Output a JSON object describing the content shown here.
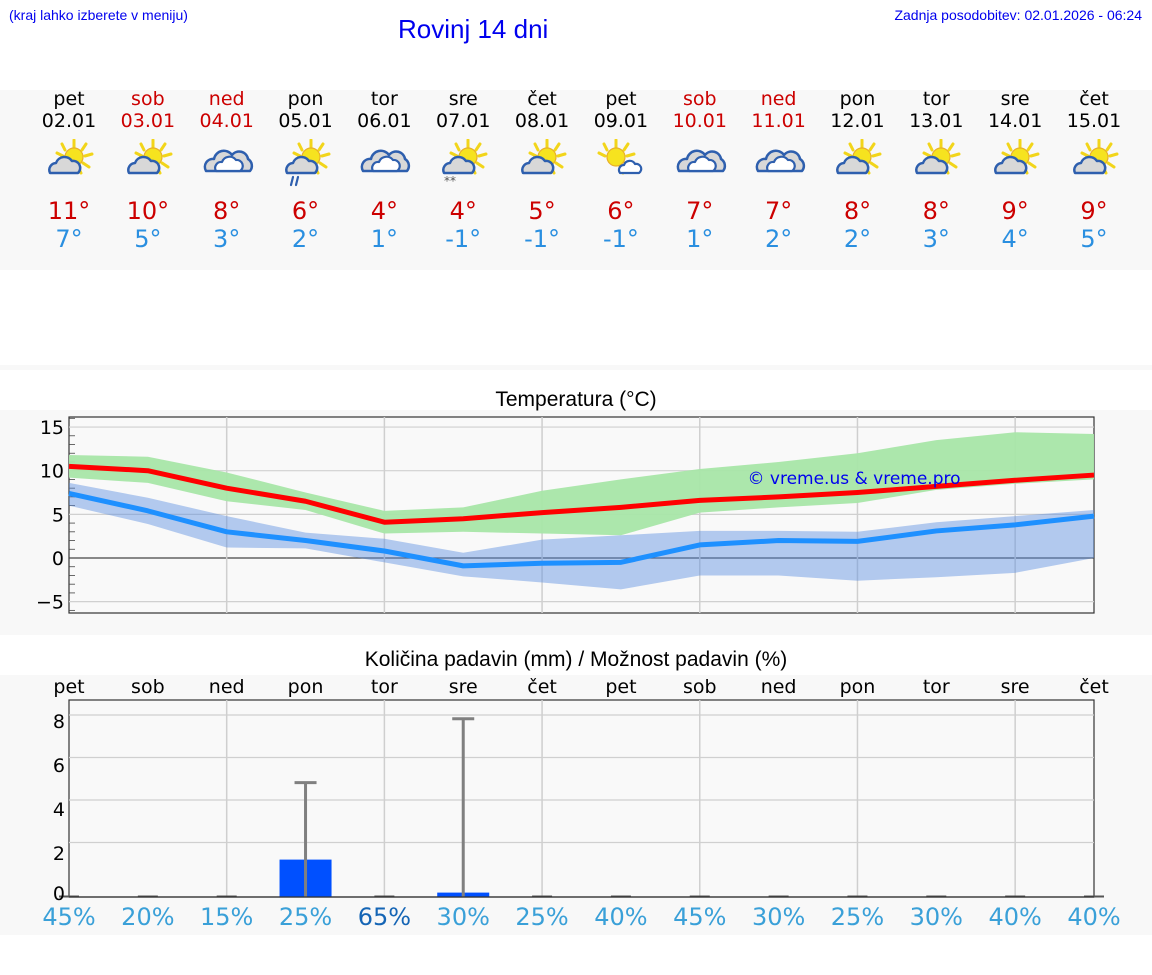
{
  "header": {
    "location_hint": "(kraj lahko izberete v meniju)",
    "title": "Rovinj 14 dni",
    "last_update": "Zadnja posodobitev: 02.01.2026 - 06:24"
  },
  "days": [
    {
      "name": "pet",
      "date": "02.01",
      "weekend": false,
      "icon": "partly-cloudy-icon",
      "tmax": "11°",
      "tmin": "7°"
    },
    {
      "name": "sob",
      "date": "03.01",
      "weekend": true,
      "icon": "partly-cloudy-icon",
      "tmax": "10°",
      "tmin": "5°"
    },
    {
      "name": "ned",
      "date": "04.01",
      "weekend": true,
      "icon": "cloudy-icon",
      "tmax": "8°",
      "tmin": "3°"
    },
    {
      "name": "pon",
      "date": "05.01",
      "weekend": false,
      "icon": "partly-cloudy-rain-icon",
      "tmax": "6°",
      "tmin": "2°"
    },
    {
      "name": "tor",
      "date": "06.01",
      "weekend": false,
      "icon": "cloudy-icon",
      "tmax": "4°",
      "tmin": "1°"
    },
    {
      "name": "sre",
      "date": "07.01",
      "weekend": false,
      "icon": "partly-cloudy-snow-icon",
      "tmax": "4°",
      "tmin": "-1°"
    },
    {
      "name": "čet",
      "date": "08.01",
      "weekend": false,
      "icon": "partly-cloudy-icon",
      "tmax": "5°",
      "tmin": "-1°"
    },
    {
      "name": "pet",
      "date": "09.01",
      "weekend": false,
      "icon": "mostly-sunny-icon",
      "tmax": "6°",
      "tmin": "-1°"
    },
    {
      "name": "sob",
      "date": "10.01",
      "weekend": true,
      "icon": "cloudy-icon",
      "tmax": "7°",
      "tmin": "1°"
    },
    {
      "name": "ned",
      "date": "11.01",
      "weekend": true,
      "icon": "cloudy-icon",
      "tmax": "7°",
      "tmin": "2°"
    },
    {
      "name": "pon",
      "date": "12.01",
      "weekend": false,
      "icon": "partly-cloudy-icon",
      "tmax": "8°",
      "tmin": "2°"
    },
    {
      "name": "tor",
      "date": "13.01",
      "weekend": false,
      "icon": "partly-cloudy-icon",
      "tmax": "8°",
      "tmin": "3°"
    },
    {
      "name": "sre",
      "date": "14.01",
      "weekend": false,
      "icon": "partly-cloudy-icon",
      "tmax": "9°",
      "tmin": "4°"
    },
    {
      "name": "čet",
      "date": "15.01",
      "weekend": false,
      "icon": "partly-cloudy-icon",
      "tmax": "9°",
      "tmin": "5°"
    }
  ],
  "colors": {
    "weekend": "#cc0000",
    "tmax": "#cc0000",
    "tmin": "#2a8fe0",
    "max_line": "#ff0000",
    "min_line": "#1e90ff",
    "max_band": "#a8e6a8",
    "min_band": "#a6c2f0",
    "precip_bar": "#0050ff",
    "precip_whisker": "#808080",
    "prob_text": "#3aa0d8",
    "prob_text_high": "#1565b5",
    "link_blue": "#0000ee"
  },
  "chart_data": [
    {
      "type": "line",
      "title": "Temperatura (°C)",
      "xlabel": "",
      "ylabel": "",
      "ylim": [
        -6.3,
        16.1
      ],
      "yticks": [
        15,
        10,
        5,
        0,
        -5
      ],
      "grid": true,
      "watermark": "© vreme.us & vreme.pro",
      "categories": [
        "02.01",
        "03.01",
        "04.01",
        "05.01",
        "06.01",
        "07.01",
        "08.01",
        "09.01",
        "10.01",
        "11.01",
        "12.01",
        "13.01",
        "14.01",
        "15.01"
      ],
      "series": [
        {
          "name": "Tmax",
          "color": "#ff0000",
          "values": [
            10.5,
            10.0,
            8.0,
            6.5,
            4.1,
            4.5,
            5.2,
            5.8,
            6.6,
            7.0,
            7.5,
            8.2,
            8.9,
            9.5
          ]
        },
        {
          "name": "Tmax range upper",
          "color": "#a8e6a8",
          "values": [
            11.8,
            11.6,
            9.8,
            7.5,
            5.4,
            5.8,
            7.7,
            9.0,
            10.2,
            11.0,
            12.0,
            13.5,
            14.4,
            14.2
          ]
        },
        {
          "name": "Tmax range lower",
          "color": "#a8e6a8",
          "values": [
            9.2,
            8.6,
            6.5,
            5.5,
            2.8,
            3.0,
            2.8,
            2.6,
            5.2,
            5.8,
            6.3,
            7.8,
            8.5,
            9.0
          ]
        },
        {
          "name": "Tmin",
          "color": "#1e90ff",
          "values": [
            7.4,
            5.4,
            3.0,
            2.0,
            0.8,
            -0.9,
            -0.6,
            -0.5,
            1.5,
            2.0,
            1.9,
            3.1,
            3.8,
            4.8
          ]
        },
        {
          "name": "Tmin range upper",
          "color": "#a6c2f0",
          "values": [
            8.6,
            6.9,
            4.8,
            2.9,
            2.2,
            0.6,
            2.1,
            2.6,
            3.1,
            3.1,
            3.0,
            4.1,
            4.8,
            5.5
          ]
        },
        {
          "name": "Tmin range lower",
          "color": "#a6c2f0",
          "values": [
            6.0,
            3.9,
            1.2,
            1.1,
            -0.5,
            -2.1,
            -2.8,
            -3.6,
            -2.0,
            -2.0,
            -2.6,
            -2.2,
            -1.7,
            0.0
          ]
        }
      ]
    },
    {
      "type": "bar",
      "title": "Količina padavin (mm) / Možnost padavin (%)",
      "xlabel": "",
      "ylabel": "",
      "ylim": [
        -0.5,
        9.0
      ],
      "yticks": [
        8,
        6,
        4,
        2,
        0
      ],
      "grid": true,
      "categories": [
        "pet",
        "sob",
        "ned",
        "pon",
        "tor",
        "sre",
        "čet",
        "pet",
        "sob",
        "ned",
        "pon",
        "tor",
        "sre",
        "čet"
      ],
      "series": [
        {
          "name": "Količina padavin (mm)",
          "color": "#0050ff",
          "values": [
            0,
            0,
            0,
            1.7,
            0,
            0.2,
            0,
            0,
            0,
            0,
            0,
            0,
            0,
            0
          ]
        },
        {
          "name": "Max padavin (mm)",
          "color": "#808080",
          "values": [
            0,
            0,
            0,
            5.2,
            0,
            8.1,
            0,
            0,
            0,
            0,
            0,
            0,
            0,
            0
          ]
        },
        {
          "name": "Možnost padavin (%)",
          "values": [
            45,
            20,
            15,
            25,
            65,
            30,
            25,
            40,
            45,
            30,
            25,
            30,
            40,
            40
          ]
        }
      ]
    }
  ],
  "precip": {
    "day_labels": [
      "pet",
      "sob",
      "ned",
      "pon",
      "tor",
      "sre",
      "čet",
      "pet",
      "sob",
      "ned",
      "pon",
      "tor",
      "sre",
      "čet"
    ],
    "probabilities": [
      "45%",
      "20%",
      "15%",
      "25%",
      "65%",
      "30%",
      "25%",
      "40%",
      "45%",
      "30%",
      "25%",
      "30%",
      "40%",
      "40%"
    ]
  }
}
